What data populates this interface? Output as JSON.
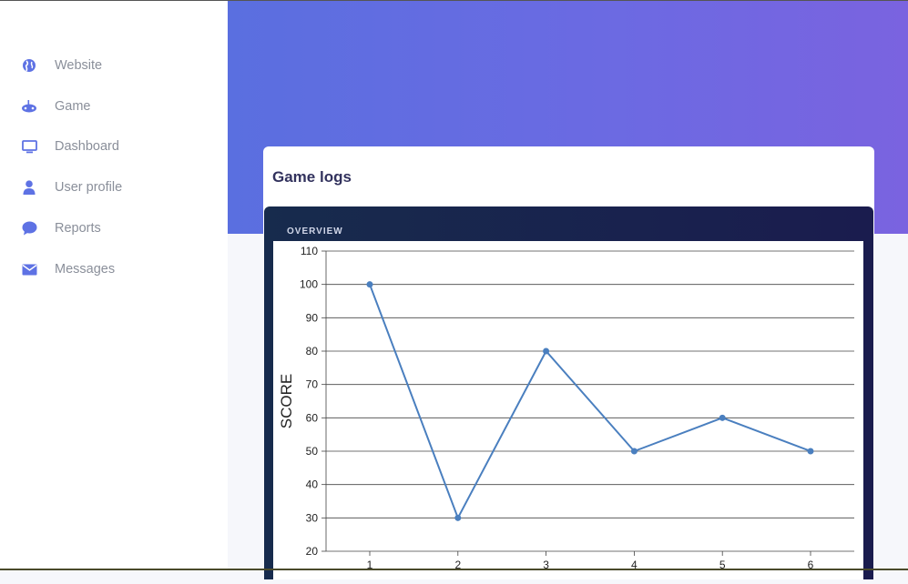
{
  "sidebar": {
    "items": [
      {
        "label": "Website",
        "icon": "globe-icon"
      },
      {
        "label": "Game",
        "icon": "gamepad-icon"
      },
      {
        "label": "Dashboard",
        "icon": "monitor-icon"
      },
      {
        "label": "User profile",
        "icon": "user-icon"
      },
      {
        "label": "Reports",
        "icon": "chat-bubble-icon"
      },
      {
        "label": "Messages",
        "icon": "envelope-icon"
      }
    ],
    "icon_color": "#5e72e4"
  },
  "card": {
    "title": "Game logs",
    "panel_label": "OVERVIEW"
  },
  "chart_data": {
    "type": "line",
    "x": [
      1,
      2,
      3,
      4,
      5,
      6
    ],
    "series": [
      {
        "values": [
          100,
          30,
          80,
          50,
          60,
          50
        ],
        "color": "#4a7fbf"
      }
    ],
    "ylabel": "SCORE",
    "xlabel": "",
    "ylim": [
      20,
      110
    ],
    "yticks": [
      20,
      30,
      40,
      50,
      60,
      70,
      80,
      90,
      100,
      110
    ],
    "grid": true
  }
}
